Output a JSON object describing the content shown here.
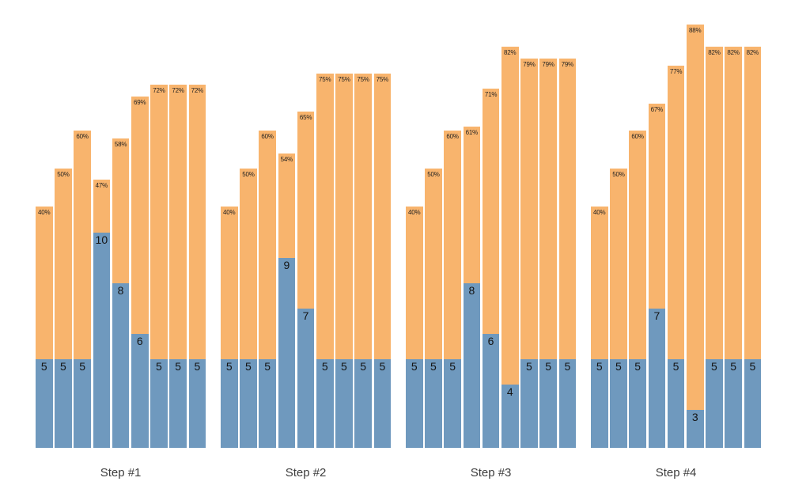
{
  "chart_data": {
    "type": "bar",
    "subtype": "stacked-bars-in-groups",
    "title": "",
    "xlabel": "",
    "ylabel": "",
    "grid": false,
    "legend": null,
    "axes_visible": false,
    "background_color": "#ffffff",
    "colors": {
      "bottom_segment_blue": "#6f99be",
      "top_segment_orange": "#f8b46d",
      "percent_label_text": "#1f1f1f",
      "value_label_text": "#141414",
      "step_label_text": "#3d3d3d"
    },
    "note_bottom_values_are_blue_segment_labels": "each bar shows a number inside the blue bottom segment and a percent label at the top of the orange segment",
    "groups": [
      {
        "label": "Step #1",
        "bars": [
          {
            "value": 5,
            "value_label": "5",
            "percent": 40,
            "percent_label": "40%"
          },
          {
            "value": 5,
            "value_label": "5",
            "percent": 50,
            "percent_label": "50%"
          },
          {
            "value": 5,
            "value_label": "5",
            "percent": 60,
            "percent_label": "60%"
          },
          {
            "value": 10,
            "value_label": "10",
            "percent": 47,
            "percent_label": "47%"
          },
          {
            "value": 8,
            "value_label": "8",
            "percent": 58,
            "percent_label": "58%"
          },
          {
            "value": 6,
            "value_label": "6",
            "percent": 69,
            "percent_label": "69%"
          },
          {
            "value": 5,
            "value_label": "5",
            "percent": 72,
            "percent_label": "72%"
          },
          {
            "value": 5,
            "value_label": "5",
            "percent": 72,
            "percent_label": "72%"
          },
          {
            "value": 5,
            "value_label": "5",
            "percent": 72,
            "percent_label": "72%"
          }
        ]
      },
      {
        "label": "Step #2",
        "bars": [
          {
            "value": 5,
            "value_label": "5",
            "percent": 40,
            "percent_label": "40%"
          },
          {
            "value": 5,
            "value_label": "5",
            "percent": 50,
            "percent_label": "50%"
          },
          {
            "value": 5,
            "value_label": "5",
            "percent": 60,
            "percent_label": "60%"
          },
          {
            "value": 9,
            "value_label": "9",
            "percent": 54,
            "percent_label": "54%"
          },
          {
            "value": 7,
            "value_label": "7",
            "percent": 65,
            "percent_label": "65%"
          },
          {
            "value": 5,
            "value_label": "5",
            "percent": 75,
            "percent_label": "75%"
          },
          {
            "value": 5,
            "value_label": "5",
            "percent": 75,
            "percent_label": "75%"
          },
          {
            "value": 5,
            "value_label": "5",
            "percent": 75,
            "percent_label": "75%"
          },
          {
            "value": 5,
            "value_label": "5",
            "percent": 75,
            "percent_label": "75%"
          }
        ]
      },
      {
        "label": "Step #3",
        "bars": [
          {
            "value": 5,
            "value_label": "5",
            "percent": 40,
            "percent_label": "40%"
          },
          {
            "value": 5,
            "value_label": "5",
            "percent": 50,
            "percent_label": "50%"
          },
          {
            "value": 5,
            "value_label": "5",
            "percent": 60,
            "percent_label": "60%"
          },
          {
            "value": 8,
            "value_label": "8",
            "percent": 61,
            "percent_label": "61%"
          },
          {
            "value": 6,
            "value_label": "6",
            "percent": 71,
            "percent_label": "71%"
          },
          {
            "value": 4,
            "value_label": "4",
            "percent": 82,
            "percent_label": "82%"
          },
          {
            "value": 5,
            "value_label": "5",
            "percent": 79,
            "percent_label": "79%"
          },
          {
            "value": 5,
            "value_label": "5",
            "percent": 79,
            "percent_label": "79%"
          },
          {
            "value": 5,
            "value_label": "5",
            "percent": 79,
            "percent_label": "79%"
          }
        ]
      },
      {
        "label": "Step #4",
        "bars": [
          {
            "value": 5,
            "value_label": "5",
            "percent": 40,
            "percent_label": "40%"
          },
          {
            "value": 5,
            "value_label": "5",
            "percent": 50,
            "percent_label": "50%"
          },
          {
            "value": 5,
            "value_label": "5",
            "percent": 60,
            "percent_label": "60%"
          },
          {
            "value": 7,
            "value_label": "7",
            "percent": 67,
            "percent_label": "67%"
          },
          {
            "value": 5,
            "value_label": "5",
            "percent": 77,
            "percent_label": "77%"
          },
          {
            "value": 3,
            "value_label": "3",
            "percent": 88,
            "percent_label": "88%"
          },
          {
            "value": 5,
            "value_label": "5",
            "percent": 82,
            "percent_label": "82%"
          },
          {
            "value": 5,
            "value_label": "5",
            "percent": 82,
            "percent_label": "82%"
          },
          {
            "value": 5,
            "value_label": "5",
            "percent": 82,
            "percent_label": "82%"
          }
        ]
      }
    ]
  }
}
